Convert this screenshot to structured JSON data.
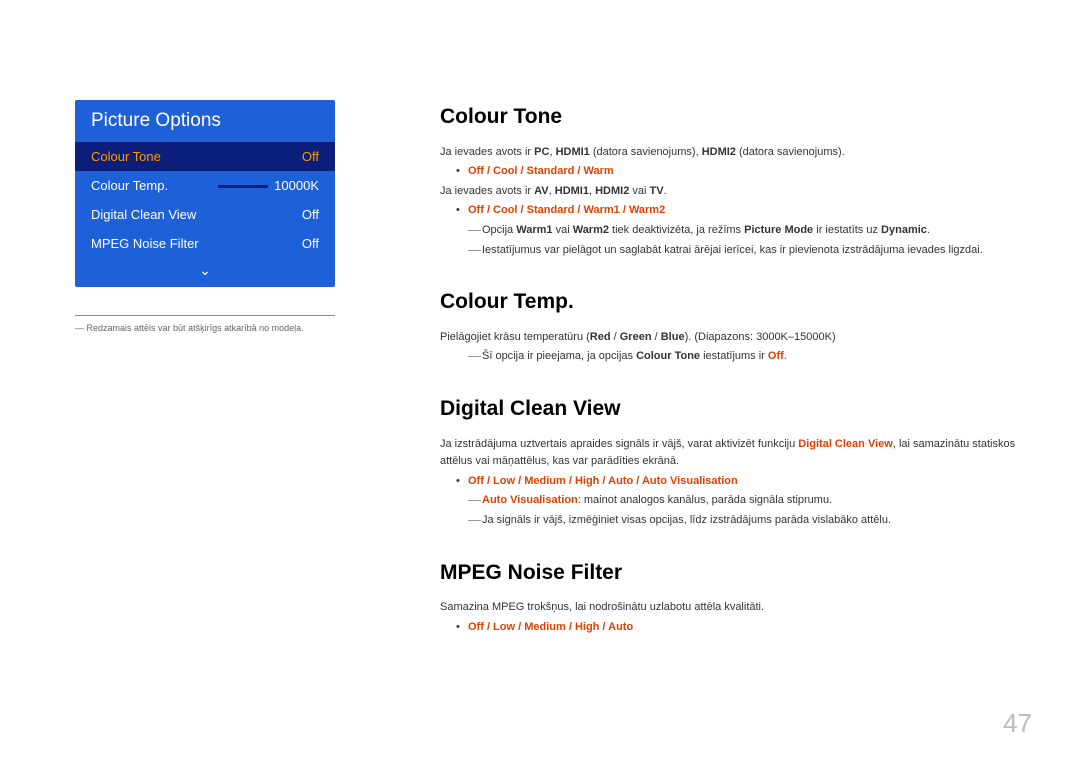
{
  "menu": {
    "title": "Picture Options",
    "rows": [
      {
        "label": "Colour Tone",
        "value": "Off"
      },
      {
        "label": "Colour Temp.",
        "value": "10000K"
      },
      {
        "label": "Digital Clean View",
        "value": "Off"
      },
      {
        "label": "MPEG Noise Filter",
        "value": "Off"
      }
    ]
  },
  "footnote": "Redzamais attēls var būt atšķirīgs atkarībā no modeļa.",
  "s1": {
    "heading": "Colour Tone",
    "p1a": "Ja ievades avots ir ",
    "p1b": "PC",
    "p1c": ", ",
    "p1d": "HDMI1",
    "p1e": " (datora savienojums), ",
    "p1f": "HDMI2",
    "p1g": " (datora savienojums).",
    "opt1": "Off / Cool / Standard / Warm",
    "p2a": "Ja ievades avots ir ",
    "p2b": "AV",
    "p2c": ", ",
    "p2d": "HDMI1",
    "p2e": ", ",
    "p2f": "HDMI2",
    "p2g": " vai ",
    "p2h": "TV",
    "p2i": ".",
    "opt2": "Off / Cool / Standard / Warm1 / Warm2",
    "d1a": "Opcija ",
    "d1b": "Warm1",
    "d1c": " vai ",
    "d1d": "Warm2",
    "d1e": " tiek deaktivizēta, ja režīms ",
    "d1f": "Picture Mode",
    "d1g": " ir iestatīts uz ",
    "d1h": "Dynamic",
    "d1i": ".",
    "d2": "Iestatījumus var pielāgot un saglabāt katrai ārējai ierīcei, kas ir pievienota izstrādājuma ievades ligzdai."
  },
  "s2": {
    "heading": "Colour Temp.",
    "p1a": "Pielāgojiet krāsu temperatūru (",
    "p1b": "Red",
    "p1c": " / ",
    "p1d": "Green",
    "p1e": " / ",
    "p1f": "Blue",
    "p1g": "). (Diapazons: 3000K–15000K)",
    "d1a": "Šī opcija ir pieejama, ja opcijas ",
    "d1b": "Colour Tone",
    "d1c": " iestatījums ir ",
    "d1d": "Off",
    "d1e": "."
  },
  "s3": {
    "heading": "Digital Clean View",
    "p1a": "Ja izstrādājuma uztvertais apraides signāls ir vājš, varat aktivizēt funkciju ",
    "p1b": "Digital Clean View",
    "p1c": ", lai samazinātu statiskos attēlus vai māņattēlus, kas var parādīties ekrānā.",
    "opt1": "Off / Low / Medium / High / Auto / Auto Visualisation",
    "d1a": "Auto Visualisation",
    "d1b": ": mainot analogos kanālus, parāda signāla stiprumu.",
    "d2": "Ja signāls ir vājš, izmēģiniet visas opcijas, līdz izstrādājums parāda vislabāko attēlu."
  },
  "s4": {
    "heading": "MPEG Noise Filter",
    "p1": "Samazina MPEG trokšņus, lai nodrošinātu uzlabotu attēla kvalitāti.",
    "opt1": "Off / Low / Medium / High / Auto"
  },
  "pageNum": "47"
}
